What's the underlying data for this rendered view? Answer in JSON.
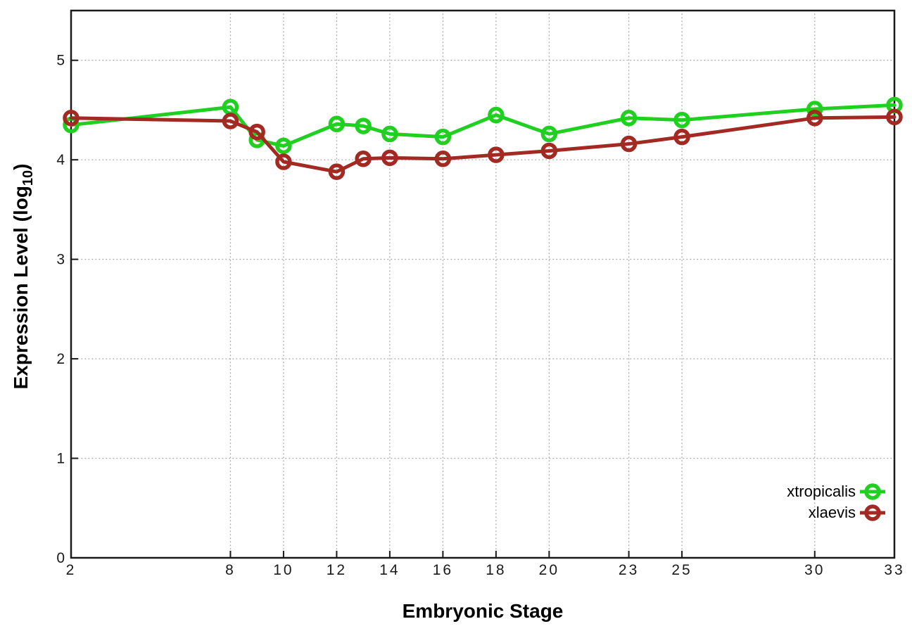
{
  "chart_data": {
    "type": "line",
    "title": "",
    "xlabel": "Embryonic Stage",
    "ylabel": "Expression Level (log10)",
    "ylabel_parts": {
      "main": "Expression Level (log",
      "sub": "10",
      "close": ")"
    },
    "x": [
      2,
      8,
      9,
      10,
      12,
      13,
      14,
      16,
      18,
      20,
      23,
      25,
      30,
      33
    ],
    "series": [
      {
        "name": "xtropicalis",
        "color": "#20d020",
        "values": [
          4.35,
          4.53,
          4.2,
          4.14,
          4.36,
          4.34,
          4.26,
          4.23,
          4.45,
          4.26,
          4.42,
          4.4,
          4.51,
          4.55
        ]
      },
      {
        "name": "xlaevis",
        "color": "#a22a22",
        "values": [
          4.42,
          4.39,
          4.28,
          3.98,
          3.88,
          4.01,
          4.02,
          4.01,
          4.05,
          4.09,
          4.16,
          4.23,
          4.42,
          4.43
        ]
      }
    ],
    "xticks": [
      2,
      8,
      10,
      12,
      14,
      16,
      18,
      20,
      23,
      25,
      30,
      33
    ],
    "yticks": [
      0,
      1,
      2,
      3,
      4,
      5
    ],
    "xlim": [
      2,
      33
    ],
    "ylim": [
      0,
      5.5
    ],
    "grid": true,
    "grid_color": "#a8a8a8",
    "axis_color": "#1a1a1a",
    "tick_label_color": "#1a1a1a",
    "background": "#ffffff",
    "legend_position": "bottom-right",
    "marker": "open-circle"
  }
}
